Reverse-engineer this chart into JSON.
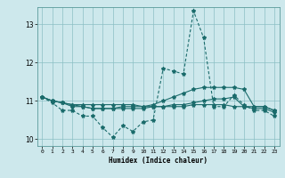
{
  "xlabel": "Humidex (Indice chaleur)",
  "bg_color": "#cde8ec",
  "grid_color": "#8bbfc4",
  "line_color": "#1a6b6b",
  "x_values": [
    0,
    1,
    2,
    3,
    4,
    5,
    6,
    7,
    8,
    9,
    10,
    11,
    12,
    13,
    14,
    15,
    16,
    17,
    18,
    19,
    20,
    21,
    22,
    23
  ],
  "series_main": [
    11.1,
    10.95,
    10.75,
    10.75,
    10.6,
    10.6,
    10.3,
    10.05,
    10.35,
    10.2,
    10.45,
    10.5,
    11.85,
    11.78,
    11.7,
    13.35,
    12.65,
    10.85,
    10.85,
    11.15,
    10.9,
    10.75,
    10.75,
    10.6
  ],
  "series2": [
    11.1,
    11.0,
    10.95,
    10.85,
    10.85,
    10.8,
    10.8,
    10.8,
    10.85,
    10.85,
    10.85,
    10.9,
    11.0,
    11.1,
    11.2,
    11.3,
    11.35,
    11.35,
    11.35,
    11.35,
    11.3,
    10.85,
    10.85,
    10.75
  ],
  "series3": [
    11.1,
    11.0,
    10.95,
    10.9,
    10.9,
    10.9,
    10.9,
    10.9,
    10.9,
    10.9,
    10.85,
    10.85,
    10.85,
    10.85,
    10.85,
    10.9,
    10.9,
    10.9,
    10.9,
    10.85,
    10.85,
    10.8,
    10.8,
    10.7
  ],
  "series4": [
    11.1,
    11.0,
    10.95,
    10.9,
    10.85,
    10.8,
    10.8,
    10.8,
    10.8,
    10.8,
    10.8,
    10.85,
    10.85,
    10.9,
    10.9,
    10.95,
    11.0,
    11.05,
    11.05,
    11.1,
    10.85,
    10.85,
    10.85,
    10.75
  ],
  "ylim": [
    9.82,
    13.45
  ],
  "yticks": [
    10,
    11,
    12,
    13
  ],
  "xticks": [
    0,
    1,
    2,
    3,
    4,
    5,
    6,
    7,
    8,
    9,
    10,
    11,
    12,
    13,
    14,
    15,
    16,
    17,
    18,
    19,
    20,
    21,
    22,
    23
  ]
}
